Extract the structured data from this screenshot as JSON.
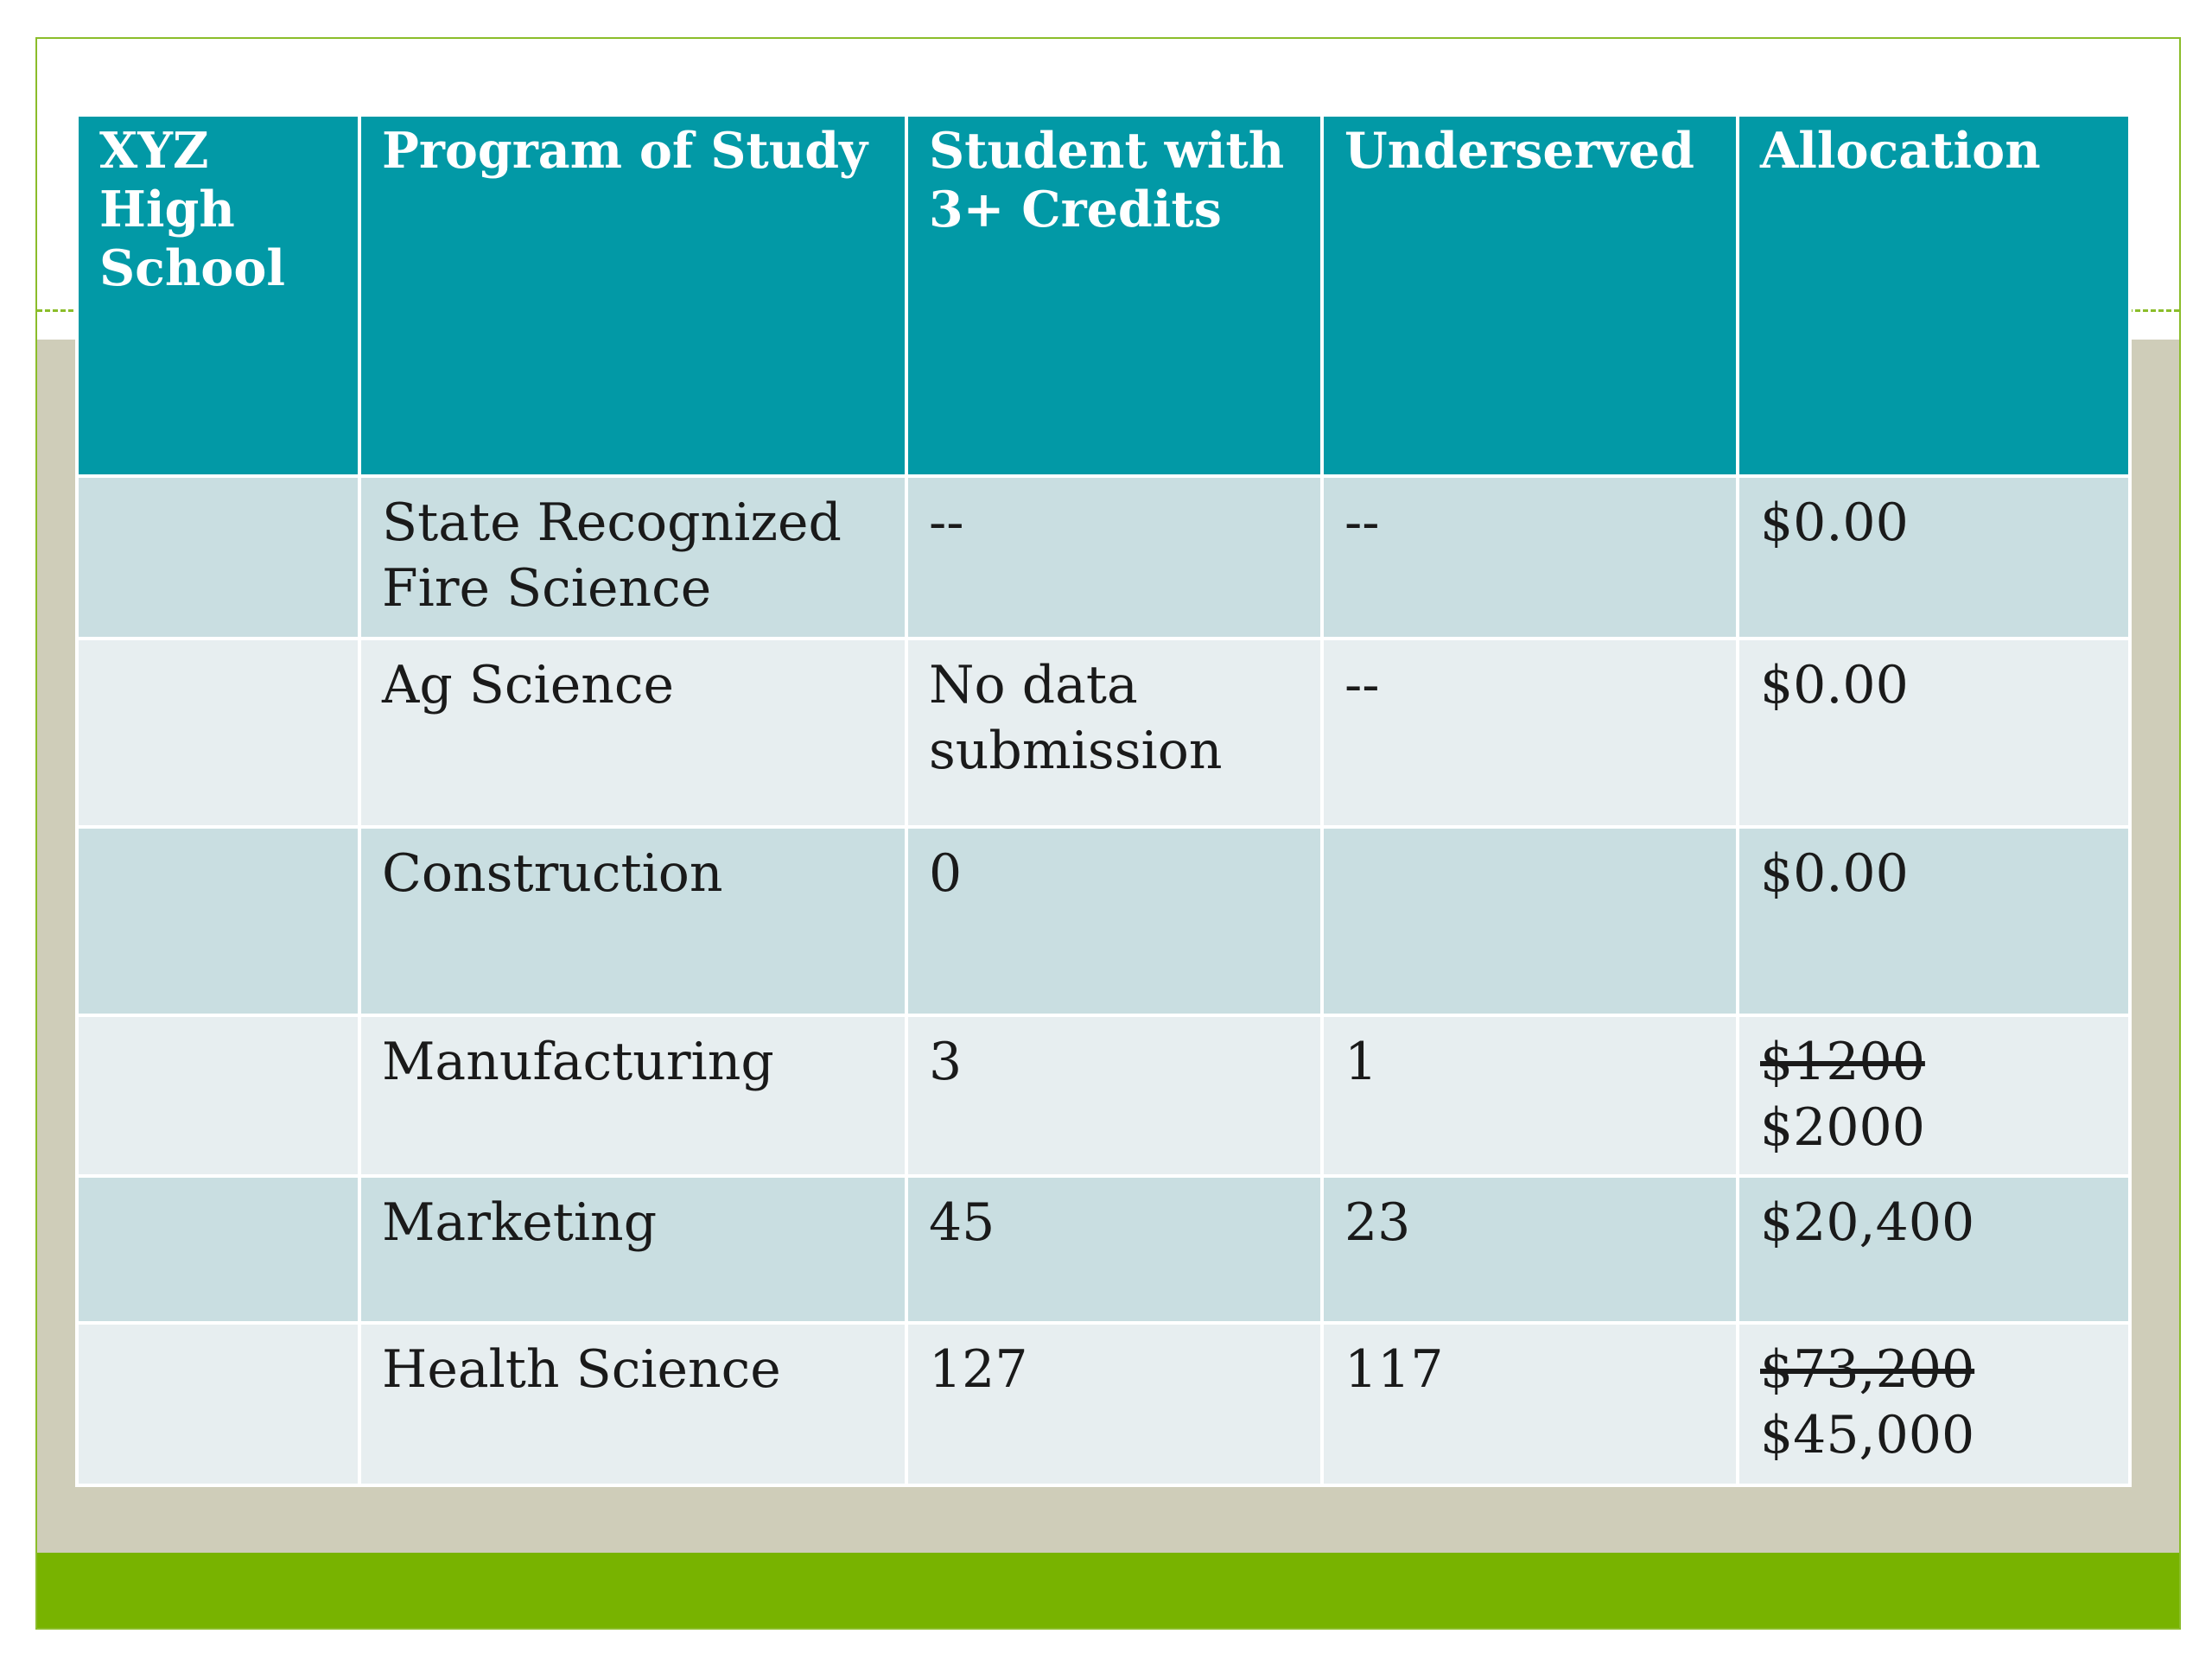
{
  "table": {
    "headers": [
      "XYZ High School",
      "Program of Study",
      "Student with 3+ Credits",
      "Underserved",
      "Allocation"
    ],
    "rows": [
      {
        "school": "",
        "program": "State Recognized Fire Science",
        "credits": "--",
        "underserved": "--",
        "allocation_old": "",
        "allocation": "$0.00"
      },
      {
        "school": "",
        "program": "Ag Science",
        "credits": "No data submission",
        "underserved": "--",
        "allocation_old": "",
        "allocation": "$0.00"
      },
      {
        "school": "",
        "program": "Construction",
        "credits": "0",
        "underserved": "",
        "allocation_old": "",
        "allocation": "$0.00"
      },
      {
        "school": "",
        "program": "Manufacturing",
        "credits": "3",
        "underserved": "1",
        "allocation_old": "$1200",
        "allocation": "$2000"
      },
      {
        "school": "",
        "program": "Marketing",
        "credits": "45",
        "underserved": "23",
        "allocation_old": "",
        "allocation": "$20,400"
      },
      {
        "school": "",
        "program": "Health Science",
        "credits": "127",
        "underserved": "117",
        "allocation_old": "$73,200",
        "allocation": "$45,000"
      }
    ]
  },
  "colors": {
    "header_bg": "#0299a6",
    "row_odd_bg": "#c9dee1",
    "row_even_bg": "#e7eef0",
    "accent_green": "#78b300",
    "tan_band": "#cfcdb9"
  }
}
